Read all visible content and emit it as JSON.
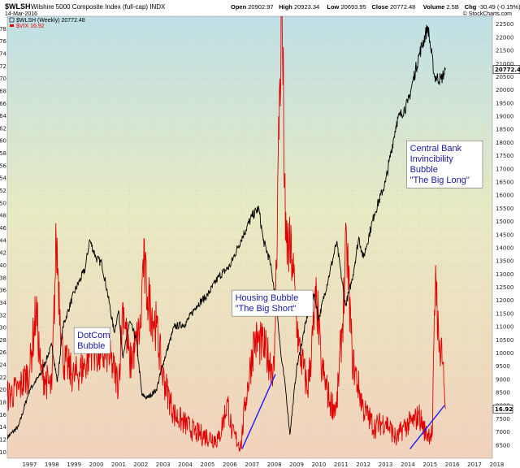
{
  "header": {
    "symbol": "$WLSH",
    "name": "Wilshire 5000 Composite Index (full-cap) INDX",
    "date": "14-Mar-2016",
    "source": "© StockCharts.com",
    "ohlc": [
      {
        "label": "Open",
        "value": "20902.97"
      },
      {
        "label": "High",
        "value": "20923.34"
      },
      {
        "label": "Low",
        "value": "20693.95"
      },
      {
        "label": "Close",
        "value": "20772.48"
      },
      {
        "label": "Volume",
        "value": "2.5B"
      },
      {
        "label": "Chg",
        "value": "-30.49 (-0.15%)"
      }
    ]
  },
  "legend": [
    {
      "text": "$WLSH (Weekly) 20772.48",
      "color": "#000000"
    },
    {
      "text": "$VIX 16.92",
      "color": "#e00000"
    }
  ],
  "colors": {
    "wlsh": "#000000",
    "vix": "#e00000",
    "trendline": "#1a1aff",
    "annotation_text": "#1a1aa0"
  },
  "chart_data": {
    "type": "line",
    "x_ticks": [
      "1997",
      "1998",
      "1999",
      "2000",
      "2001",
      "2002",
      "2003",
      "2004",
      "2005",
      "2006",
      "2007",
      "2008",
      "2009",
      "2010",
      "2011",
      "2012",
      "2013",
      "2014",
      "2015",
      "2016",
      "2017",
      "2018"
    ],
    "x_range": [
      1996.5,
      2018.3
    ],
    "left_axis_ticks": [
      10,
      12,
      14,
      16,
      18,
      20,
      22,
      24,
      26,
      28,
      30,
      32,
      34,
      36,
      38,
      40,
      42,
      44,
      46,
      48,
      50,
      52,
      54,
      56,
      58,
      60,
      62,
      64,
      66,
      68,
      70,
      72,
      74,
      76,
      78
    ],
    "left_axis_range": [
      9,
      80
    ],
    "right_axis_ticks": [
      6500,
      7000,
      7500,
      8000,
      8500,
      9000,
      9500,
      10000,
      10500,
      11000,
      11500,
      12000,
      12500,
      13000,
      13500,
      14000,
      14500,
      15000,
      15500,
      16000,
      16500,
      17000,
      17500,
      18000,
      18500,
      19000,
      19500,
      20000,
      20500,
      21000,
      21500,
      22000,
      22500
    ],
    "right_axis_range": [
      6000,
      22800
    ],
    "last_values": {
      "wlsh": "20772.48",
      "vix": "16.92"
    },
    "series": [
      {
        "name": "$WLSH (Weekly)",
        "axis": "right",
        "x": [
          1996.5,
          1997.0,
          1997.5,
          1998.0,
          1998.5,
          1998.75,
          1999.0,
          1999.5,
          2000.0,
          2000.2,
          2000.5,
          2000.75,
          2001.0,
          2001.3,
          2001.5,
          2001.7,
          2002.0,
          2002.3,
          2002.55,
          2002.8,
          2003.2,
          2003.5,
          2004.0,
          2004.5,
          2005.0,
          2005.5,
          2006.0,
          2006.5,
          2007.0,
          2007.5,
          2007.8,
          2008.0,
          2008.3,
          2008.6,
          2008.8,
          2009.0,
          2009.2,
          2009.5,
          2010.0,
          2010.3,
          2010.5,
          2011.0,
          2011.3,
          2011.7,
          2012.0,
          2012.3,
          2012.5,
          2013.0,
          2013.5,
          2014.0,
          2014.5,
          2015.0,
          2015.4,
          2015.7,
          2016.0,
          2016.2
        ],
        "y": [
          6800,
          7200,
          8600,
          9200,
          10300,
          8900,
          11000,
          12300,
          13200,
          14300,
          13600,
          13400,
          12300,
          10800,
          11600,
          9800,
          11200,
          10500,
          8400,
          8300,
          8600,
          9600,
          11000,
          11100,
          11800,
          12200,
          12900,
          13300,
          14300,
          15200,
          15500,
          14300,
          13500,
          11900,
          9900,
          8700,
          6900,
          9400,
          11500,
          12200,
          11300,
          13100,
          14200,
          11800,
          12800,
          14400,
          13600,
          15300,
          16500,
          18800,
          19500,
          21300,
          22400,
          20500,
          20400,
          20772
        ]
      },
      {
        "name": "$VIX",
        "axis": "left",
        "x": [
          1996.5,
          1997.0,
          1997.5,
          1997.8,
          1998.0,
          1998.5,
          1998.7,
          1999.0,
          1999.5,
          2000.0,
          2000.3,
          2000.7,
          2001.0,
          2001.5,
          2001.7,
          2002.0,
          2002.5,
          2002.6,
          2002.8,
          2003.2,
          2003.5,
          2004.0,
          2005.0,
          2006.0,
          2006.4,
          2006.6,
          2007.0,
          2007.2,
          2007.6,
          2008.0,
          2008.5,
          2008.75,
          2008.85,
          2009.0,
          2009.3,
          2009.6,
          2010.0,
          2010.4,
          2010.6,
          2011.0,
          2011.3,
          2011.6,
          2011.75,
          2012.0,
          2012.5,
          2013.0,
          2013.5,
          2014.0,
          2014.3,
          2014.8,
          2015.0,
          2015.3,
          2015.6,
          2015.75,
          2015.9,
          2016.0,
          2016.2
        ],
        "y": [
          19,
          20,
          23,
          33,
          23,
          20,
          44,
          25,
          22,
          24,
          27,
          25,
          26,
          21,
          34,
          24,
          30,
          41,
          35,
          30,
          22,
          16,
          13,
          12,
          18,
          13,
          11,
          18,
          28,
          27,
          23,
          70,
          80,
          44,
          41,
          27,
          20,
          35,
          24,
          18,
          17,
          33,
          44,
          25,
          17,
          14,
          15,
          12,
          14,
          15,
          16,
          13,
          13,
          40,
          26,
          28,
          16.92
        ]
      }
    ],
    "trendlines": [
      {
        "x": [
          2007.05,
          2008.55
        ],
        "y": [
          10.5,
          22.5
        ],
        "axis": "left"
      },
      {
        "x": [
          2014.6,
          2016.15
        ],
        "y": [
          10.5,
          17.5
        ],
        "axis": "left"
      }
    ],
    "annotations": [
      {
        "id": "dotcom",
        "lines": [
          "DotCom",
          "Bubble"
        ],
        "x": 1999.5,
        "y": 30
      },
      {
        "id": "housing",
        "lines": [
          "Housing Bubble",
          "\"The Big Short\""
        ],
        "x": 2006.6,
        "y": 36
      },
      {
        "id": "central-bank",
        "lines": [
          "Central Bank",
          "Invincibility",
          "Bubble",
          "\"The Big Long\""
        ],
        "x": 2014.45,
        "y": 60
      }
    ]
  }
}
